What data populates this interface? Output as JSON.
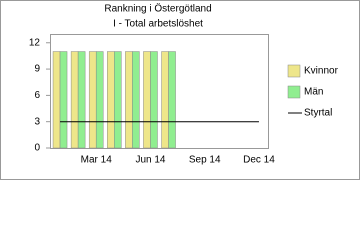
{
  "chart_data": {
    "type": "bar",
    "title": "Rankning i Östergötland",
    "subtitle": "I - Total arbetslöshet",
    "categories": [
      null,
      null,
      "Mar 14",
      null,
      null,
      "Jun 14",
      null,
      null,
      "Sep 14",
      null,
      null,
      "Dec 14"
    ],
    "series": [
      {
        "name": "Kvinnor",
        "color": "#eee68a",
        "values": [
          11,
          11,
          11,
          11,
          11,
          11,
          11,
          null,
          null,
          null,
          null,
          null
        ]
      },
      {
        "name": "Män",
        "color": "#90ee90",
        "values": [
          11,
          11,
          11,
          11,
          11,
          11,
          11,
          null,
          null,
          null,
          null,
          null
        ]
      },
      {
        "name": "Styrtal",
        "color": "#000000",
        "type": "line",
        "values": [
          3,
          3,
          3,
          3,
          3,
          3,
          3,
          3,
          3,
          3,
          3,
          3
        ]
      }
    ],
    "ylim": [
      0,
      13
    ],
    "yticks": [
      0,
      3,
      6,
      9,
      12
    ],
    "grid": false,
    "legend": "right"
  }
}
